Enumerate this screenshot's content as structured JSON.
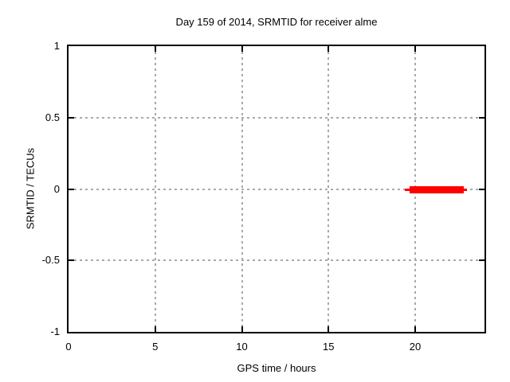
{
  "chart_data": {
    "type": "line",
    "title": "Day 159 of 2014, SRMTID for receiver alme",
    "xlabel": "GPS time / hours",
    "ylabel": "SRMTID / TECUs",
    "xlim": [
      0,
      24
    ],
    "ylim": [
      -1,
      1
    ],
    "xtick_values": [
      0,
      5,
      10,
      15,
      20
    ],
    "xtick_labels": [
      "0",
      "5",
      "10",
      "15",
      "20"
    ],
    "ytick_values": [
      -1,
      -0.5,
      0,
      0.5,
      1
    ],
    "ytick_labels": [
      "-1",
      "-0.5",
      "0",
      "0.5",
      "1"
    ],
    "grid": true,
    "legend_position": "none",
    "series": [
      {
        "name": "SRMTID",
        "color": "#ff0000",
        "description": "flat horizontal segment at y = 0, thin lead-in/out with dense thick core",
        "y": 0,
        "thin_extent_hours": [
          19.4,
          23.0
        ],
        "thick_extent_hours": [
          19.7,
          22.8
        ]
      }
    ],
    "colors": {
      "background": "#ffffff",
      "border": "#000000",
      "grid": "#a9a9a9",
      "text": "#000000",
      "series": "#ff0000"
    }
  }
}
